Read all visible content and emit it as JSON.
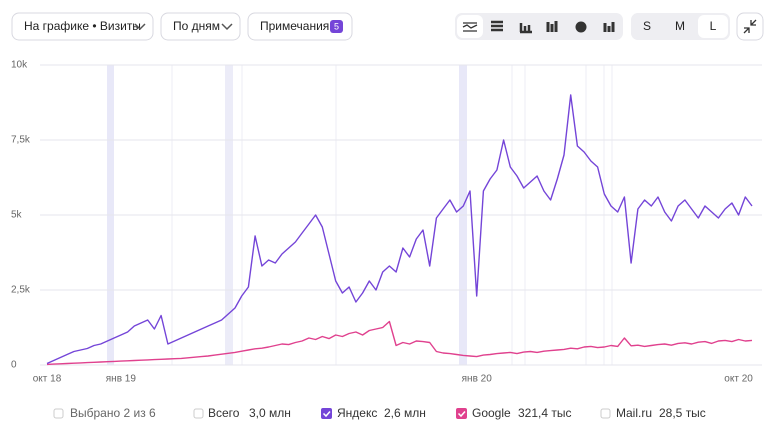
{
  "toolbar": {
    "metric": "На графике • Визиты",
    "period": "По дням",
    "notes": "Примечания",
    "notes_count": "5",
    "sizes": [
      "S",
      "M",
      "L"
    ]
  },
  "chart_data": {
    "type": "line",
    "categories": [
      "окт 18",
      null,
      null,
      null,
      null,
      null,
      null,
      null,
      null,
      null,
      null,
      "янв 19",
      null,
      null,
      null,
      null,
      null,
      null,
      null,
      null,
      null,
      null,
      null,
      null,
      null,
      null,
      null,
      null,
      null,
      null,
      null,
      null,
      null,
      null,
      null,
      null,
      null,
      null,
      null,
      null,
      null,
      null,
      null,
      null,
      null,
      null,
      null,
      null,
      null,
      null,
      null,
      null,
      null,
      null,
      null,
      null,
      null,
      null,
      null,
      null,
      null,
      null,
      null,
      null,
      "янв 20",
      null,
      null,
      null,
      null,
      null,
      null,
      null,
      null,
      null,
      null,
      null,
      null,
      null,
      null,
      null,
      null,
      null,
      null,
      null,
      null,
      null,
      null,
      null,
      null,
      null,
      null,
      null,
      null,
      null,
      null,
      null,
      null,
      null,
      null,
      null,
      null,
      null,
      null,
      "окт 20",
      null,
      null
    ],
    "series": [
      {
        "name": "Яндекс",
        "color": "#7445d8",
        "total": "2,6 млн",
        "checked": true,
        "values": [
          50,
          150,
          250,
          350,
          450,
          500,
          550,
          650,
          700,
          800,
          900,
          1000,
          1100,
          1300,
          1400,
          1500,
          1200,
          1650,
          700,
          800,
          900,
          1000,
          1100,
          1200,
          1300,
          1400,
          1500,
          1700,
          1900,
          2300,
          2600,
          4300,
          3300,
          3500,
          3400,
          3700,
          3900,
          4100,
          4400,
          4700,
          5000,
          4600,
          3700,
          2800,
          2400,
          2600,
          2100,
          2400,
          2800,
          2500,
          3100,
          3300,
          3100,
          3900,
          3600,
          4200,
          4500,
          3300,
          4900,
          5200,
          5500,
          5100,
          5300,
          5800,
          2300,
          5800,
          6200,
          6500,
          7500,
          6600,
          6300,
          5900,
          6100,
          6300,
          5800,
          5500,
          6200,
          7000,
          9000,
          7300,
          7100,
          6800,
          6600,
          5700,
          5300,
          5100,
          5600,
          3400,
          5200,
          5500,
          5300,
          5600,
          5100,
          4800,
          5300,
          5500,
          5200,
          4900,
          5300,
          5100,
          4900,
          5200,
          5400,
          5000,
          5600,
          5300
        ]
      },
      {
        "name": "Google",
        "color": "#e0418e",
        "total": "321,4 тыс",
        "checked": true,
        "values": [
          20,
          30,
          40,
          50,
          60,
          70,
          80,
          90,
          100,
          110,
          120,
          130,
          140,
          150,
          160,
          170,
          180,
          190,
          200,
          210,
          220,
          240,
          260,
          280,
          300,
          330,
          360,
          390,
          420,
          460,
          500,
          540,
          560,
          600,
          650,
          700,
          680,
          750,
          800,
          900,
          850,
          950,
          880,
          1000,
          950,
          1050,
          1100,
          1000,
          1150,
          1200,
          1250,
          1450,
          650,
          750,
          700,
          800,
          780,
          750,
          450,
          400,
          380,
          350,
          320,
          300,
          280,
          330,
          350,
          380,
          400,
          420,
          380,
          430,
          450,
          420,
          460,
          480,
          500,
          520,
          560,
          540,
          600,
          620,
          580,
          600,
          650,
          620,
          900,
          640,
          660,
          620,
          650,
          680,
          700,
          660,
          720,
          740,
          700,
          760,
          780,
          720,
          800,
          820,
          780,
          850,
          800,
          820
        ]
      }
    ],
    "legend_selection": "Выбрано 2 из 6",
    "legend_extra": [
      {
        "name": "Всего",
        "total": "3,0 млн"
      },
      {
        "name": "Mail.ru",
        "total": "28,5 тыс"
      }
    ],
    "ylim": [
      0,
      10000
    ],
    "yticks": [
      0,
      {
        "value": 2500,
        "label": "2,5k"
      },
      {
        "value": 5000,
        "label": "5k"
      },
      {
        "value": 7500,
        "label": "7,5k"
      },
      {
        "value": 10000,
        "label": "10k"
      }
    ],
    "grid": true
  }
}
